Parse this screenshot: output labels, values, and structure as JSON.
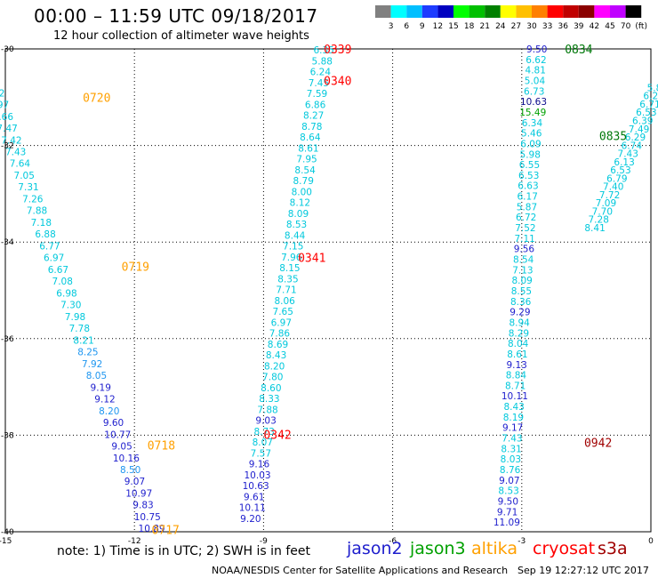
{
  "header": {
    "title": "00:00 – 11:59 UTC 09/18/2017",
    "subtitle": "12 hour collection of altimeter wave heights"
  },
  "colorbar": {
    "labels": [
      "3",
      "6",
      "9",
      "12",
      "15",
      "18",
      "21",
      "24",
      "27",
      "30",
      "33",
      "36",
      "39",
      "42",
      "45",
      "70",
      "(ft)"
    ],
    "colors": [
      "#808080",
      "#00ffff",
      "#00bfff",
      "#1e3cff",
      "#0000c0",
      "#00ff00",
      "#00c000",
      "#008000",
      "#ffff00",
      "#ffc000",
      "#ff8000",
      "#ff0000",
      "#c00000",
      "#8b0000",
      "#ff00ff",
      "#c000ff",
      "#000000"
    ]
  },
  "axes": {
    "y_labels": [
      "-30",
      "-32",
      "-34",
      "-36",
      "-38",
      "-40"
    ],
    "x_labels": [
      "-15",
      "-12",
      "-9",
      "-6",
      "-3",
      "0"
    ]
  },
  "colors": {
    "cyan": "#00c8dc",
    "lightblue": "#1e96f0",
    "blue": "#1e1ecd",
    "navy": "#0a0a8c",
    "green": "#00a000",
    "darkgreen": "#00780a",
    "orange": "#ffa000",
    "red": "#ff0000",
    "darkred": "#a00000"
  },
  "passes": [
    {
      "label": "0720",
      "color": "orange",
      "lon": -13.2,
      "lat": -31.0
    },
    {
      "label": "0719",
      "color": "orange",
      "lon": -12.3,
      "lat": -34.5
    },
    {
      "label": "0718",
      "color": "orange",
      "lon": -11.7,
      "lat": -38.2
    },
    {
      "label": "0717",
      "color": "orange",
      "lon": -11.6,
      "lat": -39.95
    },
    {
      "label": "0339",
      "color": "red",
      "lon": -7.6,
      "lat": -30.0
    },
    {
      "label": "0340",
      "color": "red",
      "lon": -7.6,
      "lat": -30.65
    },
    {
      "label": "0341",
      "color": "red",
      "lon": -8.2,
      "lat": -34.32
    },
    {
      "label": "0342",
      "color": "red",
      "lon": -9.0,
      "lat": -37.98
    },
    {
      "label": "0834",
      "color": "darkgreen",
      "lon": -2.0,
      "lat": -30.0
    },
    {
      "label": "0835",
      "color": "darkgreen",
      "lon": -1.2,
      "lat": -31.8
    },
    {
      "label": "0942",
      "color": "darkred",
      "lon": -1.55,
      "lat": -38.15
    },
    {
      "label": "0941",
      "color": "darkred",
      "lon": 0.25,
      "lat": -34.65
    }
  ],
  "tracks": [
    {
      "name": "track-0720",
      "start": [
        -15.45,
        -30.42
      ],
      "end": [
        -11.6,
        -39.93
      ],
      "values": [
        [
          "5.59",
          "cyan"
        ],
        [
          "7.07",
          "cyan"
        ],
        [
          "7.22",
          "cyan"
        ],
        [
          "7.97",
          "cyan"
        ],
        [
          "7.66",
          "cyan"
        ],
        [
          "7.47",
          "cyan"
        ],
        [
          "7.42",
          "cyan"
        ],
        [
          "7.43",
          "cyan"
        ],
        [
          "7.64",
          "cyan"
        ],
        [
          "7.05",
          "cyan"
        ],
        [
          "7.31",
          "cyan"
        ],
        [
          "7.26",
          "cyan"
        ],
        [
          "7.88",
          "cyan"
        ],
        [
          "7.18",
          "cyan"
        ],
        [
          "6.88",
          "cyan"
        ],
        [
          "6.77",
          "cyan"
        ],
        [
          "6.97",
          "cyan"
        ],
        [
          "6.67",
          "cyan"
        ],
        [
          "7.08",
          "cyan"
        ],
        [
          "6.98",
          "cyan"
        ],
        [
          "7.30",
          "cyan"
        ],
        [
          "7.98",
          "cyan"
        ],
        [
          "7.78",
          "cyan"
        ],
        [
          "8.21",
          "cyan"
        ],
        [
          "8.25",
          "lightblue"
        ],
        [
          "7.92",
          "lightblue"
        ],
        [
          "8.05",
          "lightblue"
        ],
        [
          "9.19",
          "blue"
        ],
        [
          "9.12",
          "blue"
        ],
        [
          "8.20",
          "lightblue"
        ],
        [
          "9.60",
          "blue"
        ],
        [
          "10.77",
          "blue"
        ],
        [
          "9.05",
          "blue"
        ],
        [
          "10.16",
          "blue"
        ],
        [
          "8.50",
          "lightblue"
        ],
        [
          "9.07",
          "blue"
        ],
        [
          "10.97",
          "blue"
        ],
        [
          "9.83",
          "blue"
        ],
        [
          "10.75",
          "blue"
        ],
        [
          "10.89",
          "blue"
        ]
      ]
    },
    {
      "name": "track-0339",
      "start": [
        -7.6,
        -30.02
      ],
      "end": [
        -9.3,
        -39.72
      ],
      "values": [
        [
          "6.35",
          "cyan"
        ],
        [
          "5.88",
          "cyan"
        ],
        [
          "6.24",
          "cyan"
        ],
        [
          "7.45",
          "cyan"
        ],
        [
          "7.59",
          "cyan"
        ],
        [
          "6.86",
          "cyan"
        ],
        [
          "8.27",
          "cyan"
        ],
        [
          "8.78",
          "cyan"
        ],
        [
          "8.64",
          "cyan"
        ],
        [
          "8.61",
          "cyan"
        ],
        [
          "7.95",
          "cyan"
        ],
        [
          "8.54",
          "cyan"
        ],
        [
          "8.79",
          "cyan"
        ],
        [
          "8.00",
          "cyan"
        ],
        [
          "8.12",
          "cyan"
        ],
        [
          "8.09",
          "cyan"
        ],
        [
          "8.53",
          "cyan"
        ],
        [
          "8.44",
          "cyan"
        ],
        [
          "7.15",
          "cyan"
        ],
        [
          "7.96",
          "cyan"
        ],
        [
          "8.15",
          "cyan"
        ],
        [
          "8.35",
          "cyan"
        ],
        [
          "7.71",
          "cyan"
        ],
        [
          "8.06",
          "cyan"
        ],
        [
          "7.65",
          "cyan"
        ],
        [
          "6.97",
          "cyan"
        ],
        [
          "7.86",
          "cyan"
        ],
        [
          "8.69",
          "cyan"
        ],
        [
          "8.43",
          "cyan"
        ],
        [
          "8.20",
          "cyan"
        ],
        [
          "7.80",
          "cyan"
        ],
        [
          "8.60",
          "cyan"
        ],
        [
          "8.33",
          "cyan"
        ],
        [
          "7.88",
          "cyan"
        ],
        [
          "9.03",
          "blue"
        ],
        [
          "8.73",
          "cyan"
        ],
        [
          "8.07",
          "cyan"
        ],
        [
          "7.57",
          "cyan"
        ],
        [
          "9.16",
          "blue"
        ],
        [
          "10.03",
          "blue"
        ],
        [
          "10.63",
          "blue"
        ],
        [
          "9.61",
          "blue"
        ],
        [
          "10.11",
          "blue"
        ],
        [
          "9.20",
          "blue"
        ]
      ]
    },
    {
      "name": "track-0834",
      "start": [
        -2.65,
        -30.0
      ],
      "end": [
        -3.35,
        -39.8
      ],
      "values": [
        [
          "9.50",
          "blue"
        ],
        [
          "6.62",
          "cyan"
        ],
        [
          "4.81",
          "cyan"
        ],
        [
          "5.04",
          "cyan"
        ],
        [
          "6.73",
          "cyan"
        ],
        [
          "10.63",
          "navy"
        ],
        [
          "15.49",
          "green"
        ],
        [
          "6.34",
          "cyan"
        ],
        [
          "5.46",
          "cyan"
        ],
        [
          "6.09",
          "cyan"
        ],
        [
          "5.98",
          "cyan"
        ],
        [
          "6.55",
          "cyan"
        ],
        [
          "6.53",
          "cyan"
        ],
        [
          "6.63",
          "cyan"
        ],
        [
          "6.17",
          "cyan"
        ],
        [
          "5.87",
          "cyan"
        ],
        [
          "6.72",
          "cyan"
        ],
        [
          "7.52",
          "cyan"
        ],
        [
          "7.11",
          "cyan"
        ],
        [
          "9.56",
          "blue"
        ],
        [
          "8.54",
          "cyan"
        ],
        [
          "7.13",
          "cyan"
        ],
        [
          "8.09",
          "cyan"
        ],
        [
          "8.55",
          "cyan"
        ],
        [
          "8.36",
          "cyan"
        ],
        [
          "9.29",
          "blue"
        ],
        [
          "8.94",
          "cyan"
        ],
        [
          "8.29",
          "cyan"
        ],
        [
          "8.04",
          "cyan"
        ],
        [
          "8.61",
          "cyan"
        ],
        [
          "9.13",
          "blue"
        ],
        [
          "8.84",
          "cyan"
        ],
        [
          "8.71",
          "cyan"
        ],
        [
          "10.11",
          "blue"
        ],
        [
          "8.43",
          "cyan"
        ],
        [
          "8.19",
          "cyan"
        ],
        [
          "9.17",
          "blue"
        ],
        [
          "7.43",
          "cyan"
        ],
        [
          "8.31",
          "cyan"
        ],
        [
          "8.03",
          "cyan"
        ],
        [
          "8.76",
          "cyan"
        ],
        [
          "9.07",
          "blue"
        ],
        [
          "8.53",
          "cyan"
        ],
        [
          "9.50",
          "blue"
        ],
        [
          "9.71",
          "blue"
        ],
        [
          "11.09",
          "blue"
        ]
      ]
    },
    {
      "name": "track-0835",
      "start": [
        0.15,
        -30.8
      ],
      "end": [
        -1.3,
        -33.7
      ],
      "values": [
        [
          "5.86",
          "cyan"
        ],
        [
          "6.29",
          "cyan"
        ],
        [
          "6.71",
          "cyan"
        ],
        [
          "6.53",
          "cyan"
        ],
        [
          "6.39",
          "cyan"
        ],
        [
          "7.49",
          "cyan"
        ],
        [
          "6.29",
          "cyan"
        ],
        [
          "6.74",
          "cyan"
        ],
        [
          "7.43",
          "cyan"
        ],
        [
          "6.13",
          "cyan"
        ],
        [
          "6.53",
          "cyan"
        ],
        [
          "6.79",
          "cyan"
        ],
        [
          "7.40",
          "cyan"
        ],
        [
          "7.72",
          "cyan"
        ],
        [
          "7.09",
          "cyan"
        ],
        [
          "7.70",
          "cyan"
        ],
        [
          "7.28",
          "cyan"
        ],
        [
          "8.41",
          "cyan"
        ]
      ]
    }
  ],
  "footer": {
    "note": "note: 1) Time is in UTC; 2) SWH is in feet",
    "credit": "NOAA/NESDIS Center for Satellite Applications and Research",
    "timestamp": "Sep 19 12:27:12 UTC 2017"
  },
  "satellites": [
    {
      "name": "jason2",
      "color": "#1e1ecd"
    },
    {
      "name": "jason3",
      "color": "#00a000"
    },
    {
      "name": "altika",
      "color": "#ffa000"
    },
    {
      "name": "cryosat",
      "color": "#ff0000"
    },
    {
      "name": "s3a",
      "color": "#a00000"
    }
  ]
}
